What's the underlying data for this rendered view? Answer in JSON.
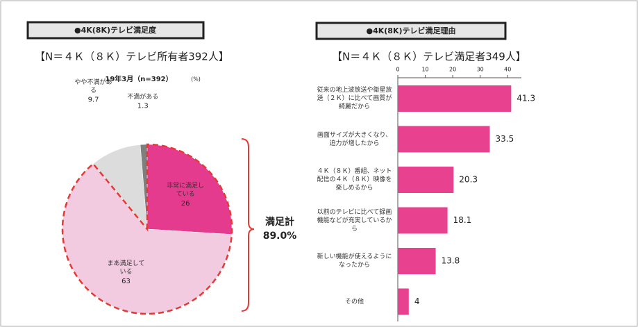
{
  "charts_page": true,
  "chart_data": [
    {
      "type": "pie",
      "title": "●4K(8K)テレビ満足度",
      "subtitle": "【N＝４Ｋ（８Ｋ）テレビ所有者392人】",
      "series_label": "19年3月（n=392）",
      "unit": "(%)",
      "categories": [
        "非常に満足している",
        "まあ満足している",
        "やや不満がある",
        "不満がある"
      ],
      "values": [
        26.0,
        63.0,
        9.7,
        1.3
      ],
      "colors": [
        "#e53b8e",
        "#f2cbe0",
        "#dcdcdc",
        "#7f7f7f"
      ],
      "annotation": {
        "text": "満足計",
        "value": 89.0,
        "value_label": "89.0%"
      }
    },
    {
      "type": "barh",
      "title": "●4K(8K)テレビ満足理由",
      "subtitle": "【N＝４Ｋ（８Ｋ）テレビ満足者349人】",
      "categories": [
        "従来の地上波放送や衛星放送（２Ｋ）に比べて画質が綺麗だから",
        "画面サイズが大きくなり、迫力が増したから",
        "４Ｋ（８Ｋ）番組、ネット配信の４Ｋ（８Ｋ）映像を楽しめるから",
        "以前のテレビに比べて録画機能などが充実しているから",
        "新しい機能が使えるようになったから",
        "その他"
      ],
      "values": [
        41.3,
        33.5,
        20.3,
        18.1,
        13.8,
        4.0
      ],
      "color": "#e8418f",
      "xlim": [
        0,
        45
      ],
      "xticks": [
        0,
        10,
        20,
        30,
        40
      ]
    }
  ]
}
